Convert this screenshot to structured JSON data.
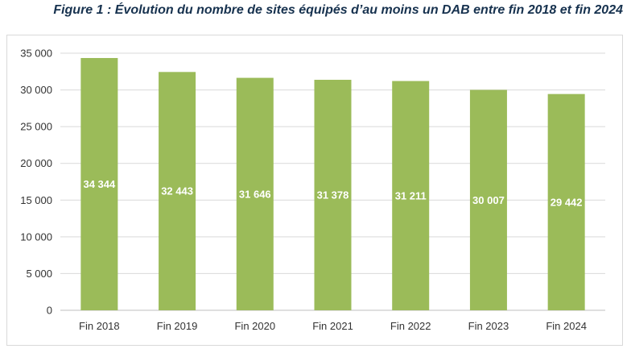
{
  "caption": "Figure 1 : Évolution du nombre de sites équipés d’au moins un DAB entre fin 2018 et fin 2024",
  "colors": {
    "bar": "#9bbb59",
    "grid": "#d9d9d9",
    "axis": "#bfbfbf"
  },
  "chart_data": {
    "type": "bar",
    "title": "",
    "xlabel": "",
    "ylabel": "",
    "categories": [
      "Fin 2018",
      "Fin 2019",
      "Fin 2020",
      "Fin 2021",
      "Fin 2022",
      "Fin 2023",
      "Fin 2024"
    ],
    "values": [
      34344,
      32443,
      31646,
      31378,
      31211,
      30007,
      29442
    ],
    "data_labels": [
      "34 344",
      "32 443",
      "31 646",
      "31 378",
      "31 211",
      "30 007",
      "29 442"
    ],
    "ylim": [
      0,
      35000
    ],
    "yticks": [
      0,
      5000,
      10000,
      15000,
      20000,
      25000,
      30000,
      35000
    ],
    "ytick_labels": [
      "0",
      "5 000",
      "10 000",
      "15 000",
      "20 000",
      "25 000",
      "30 000",
      "35 000"
    ],
    "grid": true,
    "legend": "none"
  }
}
